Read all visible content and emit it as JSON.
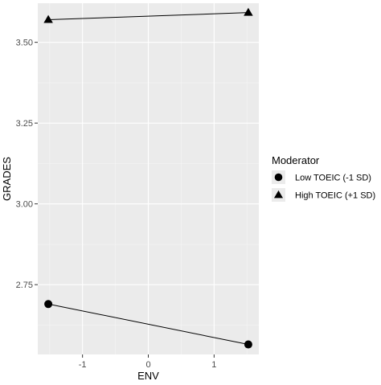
{
  "chart_data": {
    "type": "line",
    "xlabel": "ENV",
    "ylabel": "GRADES",
    "xlim": [
      -1.68,
      1.68
    ],
    "ylim": [
      2.534,
      3.621
    ],
    "x_ticks": [
      -1,
      0,
      1
    ],
    "x_tick_labels": [
      "-1",
      "0",
      "1"
    ],
    "y_ticks": [
      2.75,
      3.0,
      3.25,
      3.5
    ],
    "y_tick_labels": [
      "2.75",
      "3.00",
      "3.25",
      "3.50"
    ],
    "grid": true,
    "legend": {
      "title": "Moderator",
      "placement": "right"
    },
    "series": [
      {
        "name": "Low TOEIC (-1 SD)",
        "marker": "circle",
        "color": "#000000",
        "x": [
          -1.52,
          1.52
        ],
        "y": [
          2.69,
          2.565
        ]
      },
      {
        "name": "High TOEIC (+1 SD)",
        "marker": "triangle",
        "color": "#000000",
        "x": [
          -1.52,
          1.52
        ],
        "y": [
          3.57,
          3.592
        ]
      }
    ],
    "panel_color": "#ebebeb",
    "grid_major_color": "#ffffff",
    "grid_minor_color": "#f5f5f5"
  }
}
